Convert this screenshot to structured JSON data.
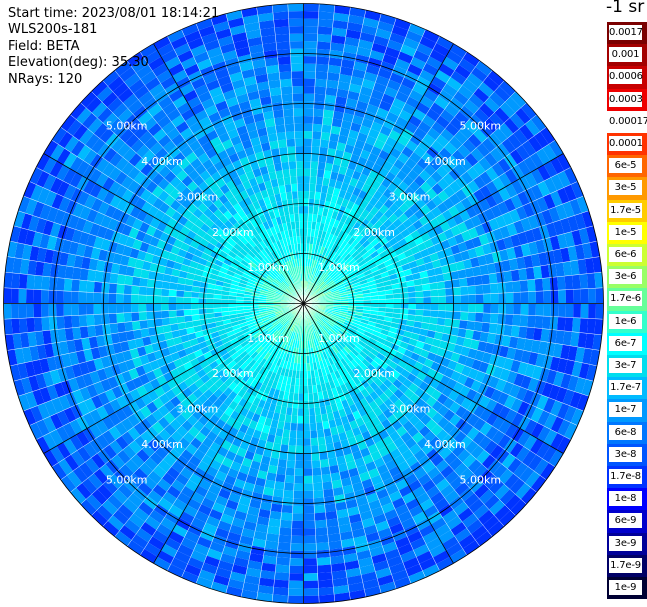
{
  "info": {
    "start_time": "Start time: 2023/08/01 18:14:21",
    "station": "WLS200s-181",
    "field": "Field: BETA",
    "elevation": "Elevation(deg): 35.30",
    "nrays": "NRays: 120"
  },
  "colorbar": {
    "unit": "-1 sr",
    "levels": [
      {
        "label": "0.0017",
        "color": "#7a0000"
      },
      {
        "label": "0.001",
        "color": "#a30000"
      },
      {
        "label": "0.0006",
        "color": "#c80000"
      },
      {
        "label": "0.0003",
        "color": "#ee0000"
      },
      {
        "label": "0.00017",
        "color": "#ffffff"
      },
      {
        "label": "0.0001",
        "color": "#ff3300"
      },
      {
        "label": "6e-5",
        "color": "#ff6600"
      },
      {
        "label": "3e-5",
        "color": "#ff9900"
      },
      {
        "label": "1.7e-5",
        "color": "#ffcc00"
      },
      {
        "label": "1e-5",
        "color": "#ffff00"
      },
      {
        "label": "6e-6",
        "color": "#ccff33"
      },
      {
        "label": "3e-6",
        "color": "#99ff66"
      },
      {
        "label": "1.7e-6",
        "color": "#66ff99"
      },
      {
        "label": "1e-6",
        "color": "#33ffcc"
      },
      {
        "label": "6e-7",
        "color": "#00ffff"
      },
      {
        "label": "3e-7",
        "color": "#00ddee"
      },
      {
        "label": "1.7e-7",
        "color": "#00bbff"
      },
      {
        "label": "1e-7",
        "color": "#0099ff"
      },
      {
        "label": "6e-8",
        "color": "#0077ff"
      },
      {
        "label": "3e-8",
        "color": "#0055ff"
      },
      {
        "label": "1.7e-8",
        "color": "#0033ff"
      },
      {
        "label": "1e-8",
        "color": "#0000ff"
      },
      {
        "label": "6e-9",
        "color": "#0000cc"
      },
      {
        "label": "3e-9",
        "color": "#000099"
      },
      {
        "label": "1.7e-9",
        "color": "#000066"
      },
      {
        "label": "1e-9",
        "color": "#000033"
      }
    ]
  },
  "chart_data": {
    "type": "heatmap",
    "projection": "polar (PPI scan)",
    "field": "BETA",
    "elevation_deg": 35.3,
    "n_rays": 120,
    "range_max_km": 6.0,
    "range_rings_km": [
      1,
      2,
      3,
      4,
      5
    ],
    "range_labels": [
      "1.00km",
      "2.00km",
      "3.00km",
      "4.00km",
      "5.00km"
    ],
    "azimuth_spokes_deg": [
      0,
      30,
      60,
      90,
      120,
      150,
      180,
      210,
      240,
      270,
      300,
      330
    ],
    "value_profile_by_range": [
      {
        "range_km": 0.0,
        "level": "1.7e-6"
      },
      {
        "range_km": 0.5,
        "level": "1e-6"
      },
      {
        "range_km": 1.0,
        "level": "6e-7"
      },
      {
        "range_km": 2.0,
        "level": "3e-7"
      },
      {
        "range_km": 3.0,
        "level": "1.7e-7"
      },
      {
        "range_km": 4.0,
        "level": "1e-7"
      },
      {
        "range_km": 5.0,
        "level": "6e-8"
      },
      {
        "range_km": 6.0,
        "level": "3e-8"
      }
    ]
  }
}
